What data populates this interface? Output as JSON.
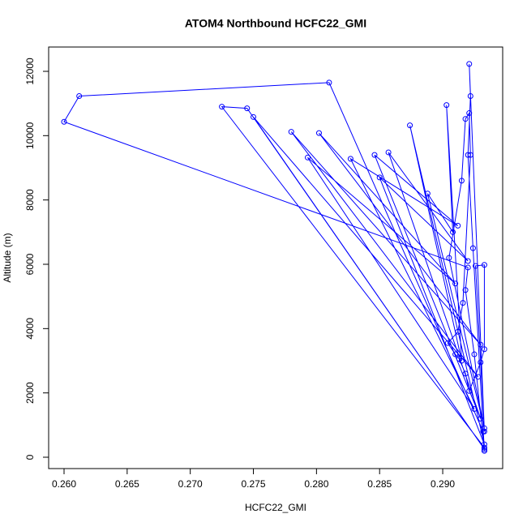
{
  "chart_data": {
    "type": "line",
    "title": "ATOM4 Northbound HCFC22_GMI",
    "xlabel": "HCFC22_GMI",
    "ylabel": "Altitude (m)",
    "color": "#0000ff",
    "marker": "circle",
    "x": [
      0.2933,
      0.2925,
      0.2918,
      0.292,
      0.26,
      0.2612,
      0.281,
      0.2932,
      0.2933,
      0.2725,
      0.2745,
      0.2933,
      0.275,
      0.2928,
      0.278,
      0.293,
      0.2802,
      0.291,
      0.2793,
      0.2925,
      0.2827,
      0.2912,
      0.2846,
      0.293,
      0.2857,
      0.292,
      0.285,
      0.2933,
      0.2874,
      0.2915,
      0.2903,
      0.2908,
      0.2888,
      0.2933,
      0.2905,
      0.2915,
      0.2918,
      0.2921,
      0.2922,
      0.2916,
      0.2912,
      0.2904,
      0.291,
      0.2913,
      0.2918,
      0.2921,
      0.293,
      0.2933,
      0.2933,
      0.2926,
      0.2933,
      0.2921,
      0.2922,
      0.292,
      0.2924,
      0.2933
    ],
    "values": [
      200,
      3200,
      5200,
      5900,
      10430,
      11230,
      11650,
      800,
      300,
      10900,
      10850,
      250,
      10580,
      2500,
      10120,
      3500,
      10080,
      5400,
      9320,
      1500,
      9280,
      7200,
      9400,
      1200,
      9480,
      6100,
      8700,
      400,
      10320,
      3000,
      10950,
      7000,
      8200,
      900,
      6200,
      8600,
      10520,
      10700,
      9400,
      4800,
      3900,
      3550,
      3200,
      3060,
      2600,
      2060,
      2950,
      3360,
      5980,
      5950,
      800,
      12230,
      11230,
      9400,
      6500,
      200
    ],
    "xlim": [
      0.25878,
      0.29475
    ],
    "ylim": [
      -353,
      12756
    ],
    "xticks": [
      {
        "value": 0.26,
        "label": "0.260"
      },
      {
        "value": 0.265,
        "label": "0.265"
      },
      {
        "value": 0.27,
        "label": "0.270"
      },
      {
        "value": 0.275,
        "label": "0.275"
      },
      {
        "value": 0.28,
        "label": "0.280"
      },
      {
        "value": 0.285,
        "label": "0.285"
      },
      {
        "value": 0.29,
        "label": "0.290"
      }
    ],
    "yticks": [
      0,
      2000,
      4000,
      6000,
      8000,
      10000,
      12000
    ]
  }
}
